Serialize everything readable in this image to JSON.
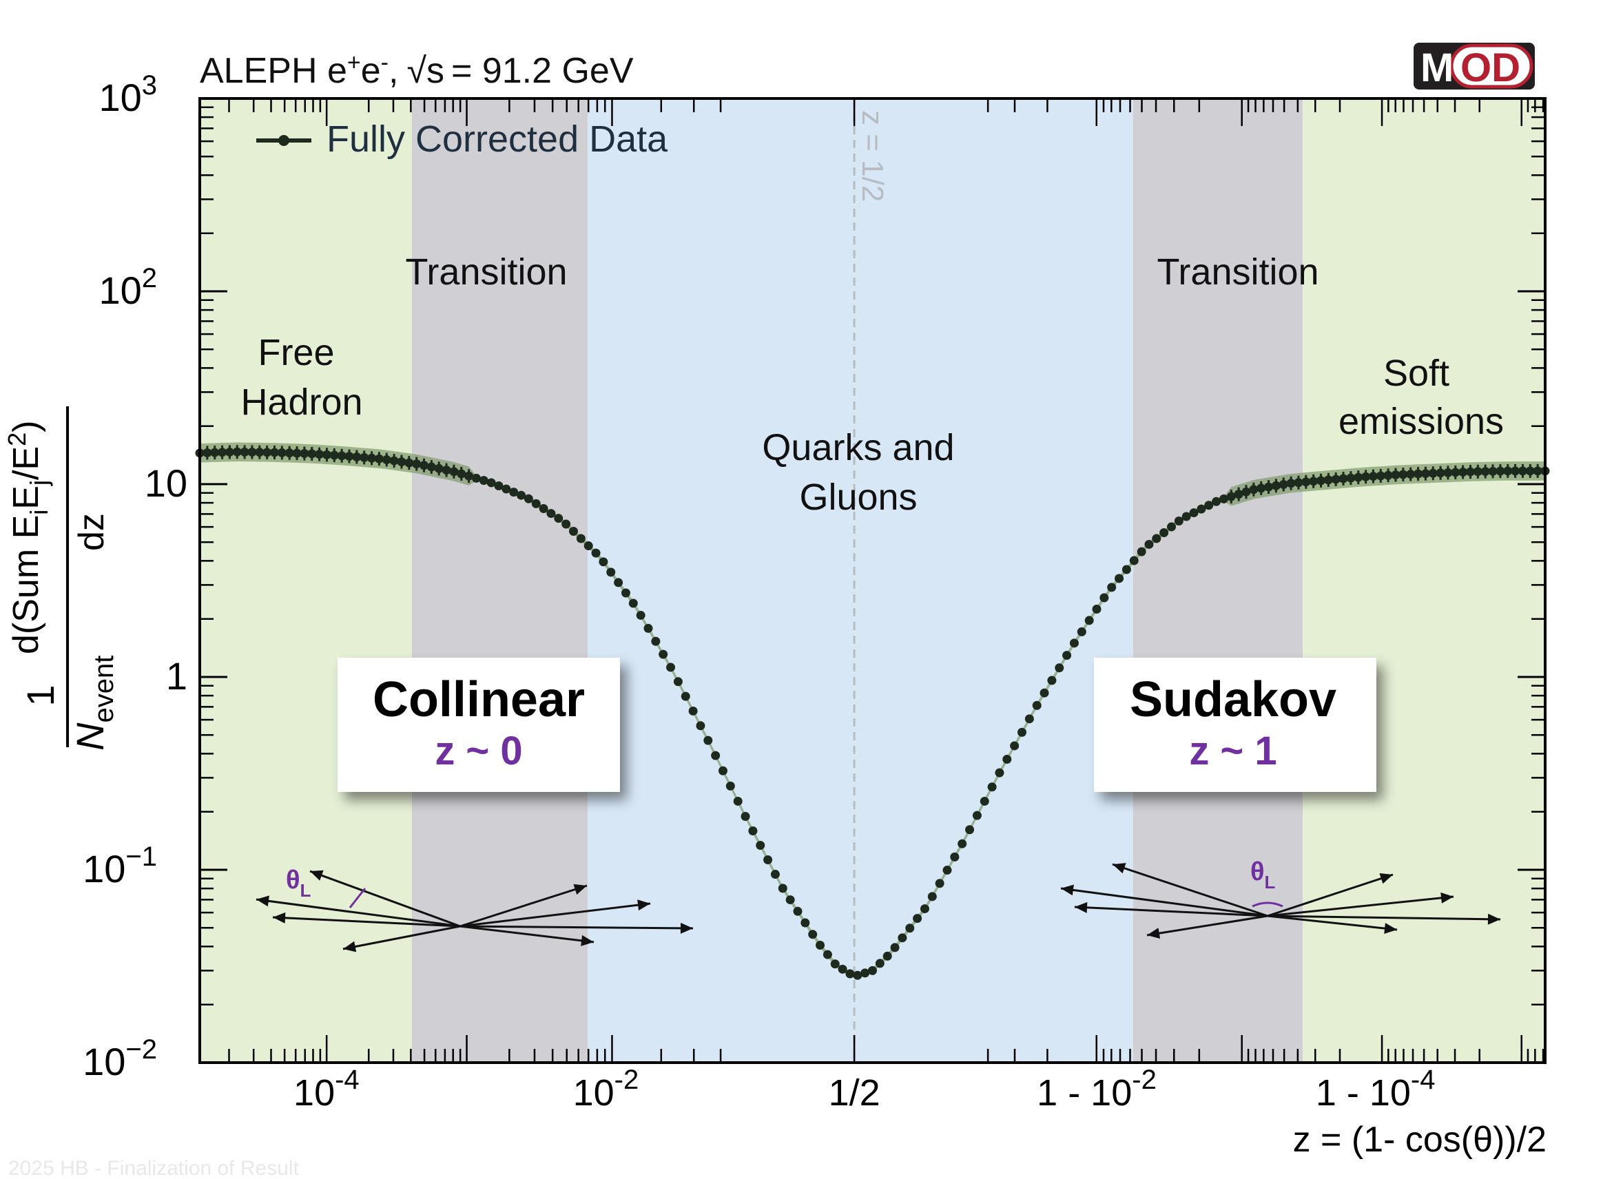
{
  "header": {
    "experiment": "ALEPH e",
    "plus_sup": "+",
    "e2": "e",
    "minus_sup": "-",
    "comma": ",",
    "sqrt_s": "√s",
    "energy": "= 91.2 GeV"
  },
  "logo": {
    "text_m": "M",
    "text_od": "OD",
    "dark": "#231f20",
    "accent": "#b32030"
  },
  "legend": {
    "label": "Fully Corrected Data"
  },
  "regions": [
    {
      "name": "free-hadron-left",
      "label": "Free\nHadron",
      "color": "#e4efd4"
    },
    {
      "name": "transition-left",
      "label": "Transition",
      "color": "#d0d0d4"
    },
    {
      "name": "quarks-gluons",
      "label": "Quarks and\nGluons",
      "color": "#d7e7f6"
    },
    {
      "name": "transition-right",
      "label": "Transition",
      "color": "#d0d0d4"
    },
    {
      "name": "soft-emissions",
      "label": "Soft\nemissions",
      "color": "#e4efd4"
    }
  ],
  "boxes": [
    {
      "title": "Collinear",
      "subtitle": "z ~ 0",
      "subtitle_color": "#7030a0"
    },
    {
      "title": "Sudakov",
      "subtitle": "z ~ 1",
      "subtitle_color": "#7030a0"
    }
  ],
  "angle_labels": [
    {
      "theta": "θ",
      "sub": "L",
      "color": "#7030a0"
    },
    {
      "theta": "θ",
      "sub": "L",
      "color": "#7030a0"
    }
  ],
  "midline_label": "z = 1/2",
  "watermark": "2025 HB - Finalization of Result",
  "chart_data": {
    "type": "scatter",
    "title": "ALEPH e+e-, √s = 91.2 GeV",
    "series": [
      {
        "name": "Fully Corrected Data",
        "color": "#1e2a1e",
        "band_color": "#7f9a6a",
        "points": [
          [
            -9.0,
            14.5
          ],
          [
            -8.4,
            14.7
          ],
          [
            -7.8,
            14.6
          ],
          [
            -7.2,
            14.4
          ],
          [
            -6.6,
            14.0
          ],
          [
            -6.0,
            13.5
          ],
          [
            -5.4,
            12.7
          ],
          [
            -4.8,
            11.6
          ],
          [
            -4.2,
            10.2
          ],
          [
            -3.6,
            8.5
          ],
          [
            -3.0,
            6.4
          ],
          [
            -2.4,
            4.2
          ],
          [
            -1.8,
            2.3
          ],
          [
            -1.2,
            1.08
          ],
          [
            -0.6,
            0.46
          ],
          [
            0.0,
            0.19
          ],
          [
            0.6,
            0.082
          ],
          [
            1.2,
            0.042
          ],
          [
            1.5,
            0.032
          ],
          [
            1.8,
            0.028
          ],
          [
            2.1,
            0.03
          ],
          [
            2.4,
            0.037
          ],
          [
            3.0,
            0.065
          ],
          [
            3.6,
            0.14
          ],
          [
            4.2,
            0.32
          ],
          [
            4.8,
            0.7
          ],
          [
            5.4,
            1.45
          ],
          [
            6.0,
            2.8
          ],
          [
            6.6,
            4.7
          ],
          [
            7.2,
            6.6
          ],
          [
            7.8,
            8.2
          ],
          [
            8.4,
            9.4
          ],
          [
            9.0,
            10.1
          ],
          [
            9.6,
            10.5
          ],
          [
            10.2,
            10.9
          ],
          [
            10.8,
            11.2
          ],
          [
            11.4,
            11.4
          ],
          [
            12.0,
            11.6
          ],
          [
            12.6,
            11.7
          ],
          [
            13.2,
            11.7
          ]
        ]
      }
    ],
    "x_axis": {
      "label": "z = (1- cos(θ))/2",
      "transform": "ln(z/(1-z))",
      "range": [
        -9.0,
        13.2
      ],
      "tick_labels": [
        {
          "x": -6.91,
          "base": "10",
          "sup": "-4"
        },
        {
          "x": -2.3,
          "base": "10",
          "sup": "-2"
        },
        {
          "x": 1.8,
          "base": "1/2",
          "sup": ""
        },
        {
          "x": 5.8,
          "base": "1 - 10",
          "sup": "-2"
        },
        {
          "x": 10.4,
          "base": "1 - 10",
          "sup": "-4"
        }
      ]
    },
    "y_axis": {
      "label": "1/N_event d(Sum E_i E_j/E^2)/dz",
      "scale": "log",
      "range": [
        0.01,
        1000
      ],
      "tick_labels": [
        {
          "v": 0.01,
          "base": "10",
          "sup": "−2"
        },
        {
          "v": 0.1,
          "base": "10",
          "sup": "−1"
        },
        {
          "v": 1,
          "base": "1",
          "sup": ""
        },
        {
          "v": 10,
          "base": "10",
          "sup": ""
        },
        {
          "v": 100,
          "base": "10",
          "sup": "2"
        },
        {
          "v": 1000,
          "base": "10",
          "sup": "3"
        }
      ],
      "label_parts": {
        "one": "1",
        "n": "N",
        "event": "event",
        "d": "d(Sum E",
        "i": "i",
        "e": "E",
        "j": "j",
        "frac": "/E",
        "two": "2",
        "close": ")",
        "dz": "dz"
      }
    },
    "region_bounds_x": [
      -9.0,
      -5.5,
      -2.6,
      6.4,
      9.2,
      13.2
    ],
    "grid": false,
    "legend_position": "top-left"
  }
}
